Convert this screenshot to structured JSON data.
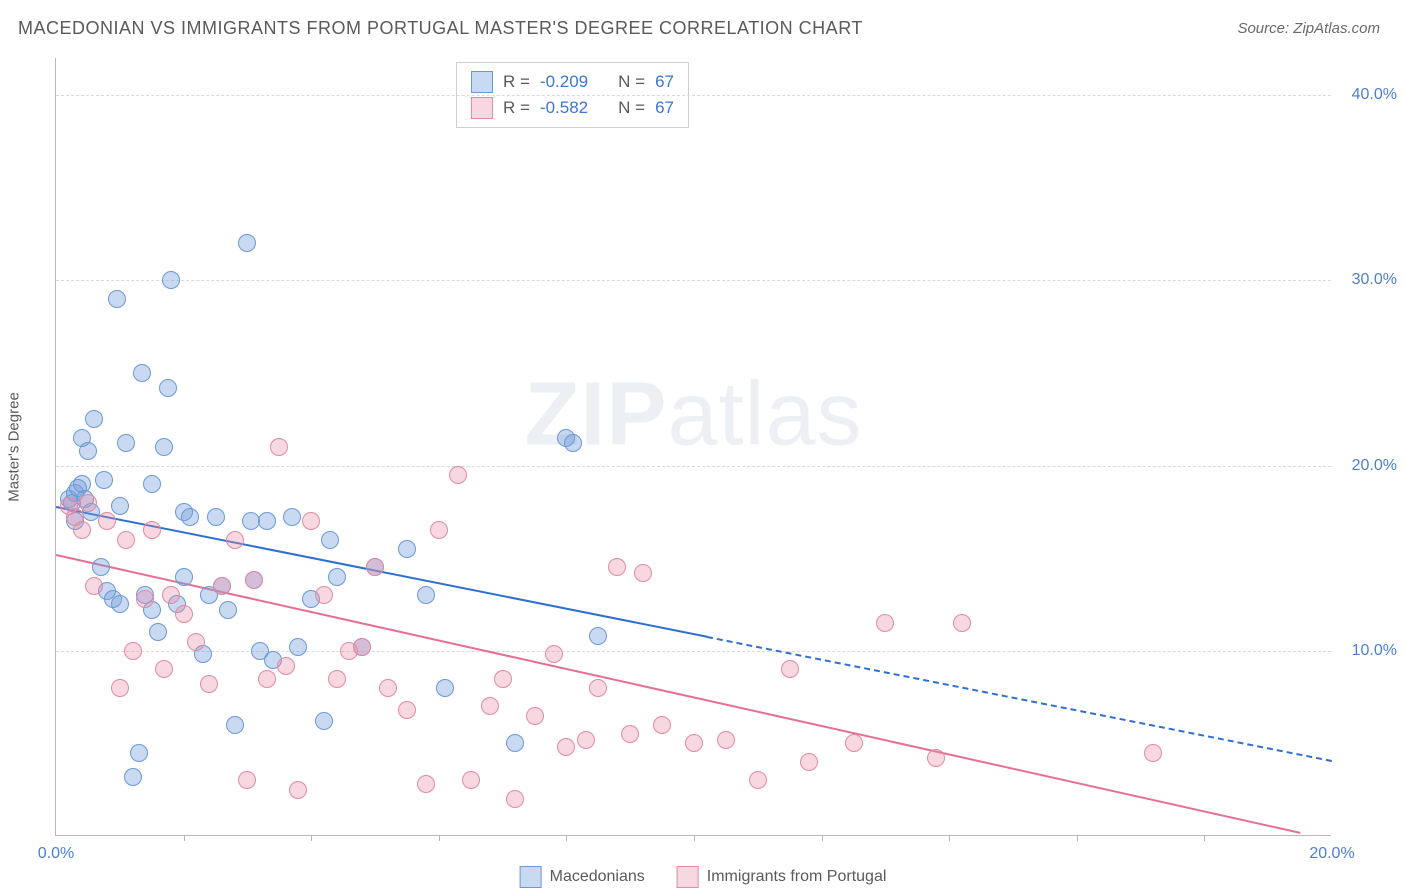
{
  "title": "MACEDONIAN VS IMMIGRANTS FROM PORTUGAL MASTER'S DEGREE CORRELATION CHART",
  "source_label": "Source: ZipAtlas.com",
  "watermark": {
    "bold": "ZIP",
    "rest": "atlas"
  },
  "chart": {
    "type": "scatter",
    "ylabel": "Master's Degree",
    "xlim": [
      0,
      20
    ],
    "ylim": [
      0,
      42
    ],
    "x_ticks": [
      0,
      20
    ],
    "x_tick_labels": [
      "0.0%",
      "20.0%"
    ],
    "x_minor_marks": [
      2,
      4,
      6,
      8,
      10,
      12,
      14,
      16,
      18
    ],
    "y_gridlines": [
      10,
      20,
      30,
      40
    ],
    "y_tick_labels": [
      "10.0%",
      "20.0%",
      "30.0%",
      "40.0%"
    ],
    "plot_bg": "#ffffff",
    "grid_color": "#d9d9d9",
    "axis_color": "#b8b8b8",
    "tick_label_color": "#4a7fd6",
    "marker_radius": 9,
    "marker_border": 1,
    "series": [
      {
        "id": "macedonians",
        "label": "Macedonians",
        "fill": "rgba(120,160,220,0.40)",
        "stroke": "#6a99d6",
        "reg_color": "#2f6fd0",
        "stats": {
          "R": "-0.209",
          "N": "67"
        },
        "regression": {
          "x1": 0,
          "y1": 17.8,
          "x2_solid": 10.2,
          "y2_solid": 10.8,
          "x2_dash": 20,
          "y2_dash": 4.1
        },
        "points": [
          [
            0.2,
            18.2
          ],
          [
            0.25,
            18.0
          ],
          [
            0.3,
            18.5
          ],
          [
            0.3,
            17.0
          ],
          [
            0.35,
            18.8
          ],
          [
            0.4,
            21.5
          ],
          [
            0.4,
            19.0
          ],
          [
            0.45,
            18.2
          ],
          [
            0.5,
            20.8
          ],
          [
            0.55,
            17.5
          ],
          [
            0.6,
            22.5
          ],
          [
            0.7,
            14.5
          ],
          [
            0.75,
            19.2
          ],
          [
            0.8,
            13.2
          ],
          [
            0.9,
            12.8
          ],
          [
            0.95,
            29.0
          ],
          [
            1.0,
            17.8
          ],
          [
            1.0,
            12.5
          ],
          [
            1.1,
            21.2
          ],
          [
            1.2,
            3.2
          ],
          [
            1.3,
            4.5
          ],
          [
            1.35,
            25.0
          ],
          [
            1.4,
            13.0
          ],
          [
            1.5,
            19.0
          ],
          [
            1.5,
            12.2
          ],
          [
            1.6,
            11.0
          ],
          [
            1.7,
            21.0
          ],
          [
            1.75,
            24.2
          ],
          [
            1.8,
            30.0
          ],
          [
            1.9,
            12.5
          ],
          [
            2.0,
            17.5
          ],
          [
            2.0,
            14.0
          ],
          [
            2.1,
            17.2
          ],
          [
            2.3,
            9.8
          ],
          [
            2.4,
            13.0
          ],
          [
            2.5,
            17.2
          ],
          [
            2.6,
            13.5
          ],
          [
            2.7,
            12.2
          ],
          [
            2.8,
            6.0
          ],
          [
            3.0,
            32.0
          ],
          [
            3.05,
            17.0
          ],
          [
            3.1,
            13.8
          ],
          [
            3.2,
            10.0
          ],
          [
            3.3,
            17.0
          ],
          [
            3.4,
            9.5
          ],
          [
            3.7,
            17.2
          ],
          [
            3.8,
            10.2
          ],
          [
            4.0,
            12.8
          ],
          [
            4.2,
            6.2
          ],
          [
            4.3,
            16.0
          ],
          [
            4.4,
            14.0
          ],
          [
            4.8,
            10.2
          ],
          [
            5.0,
            14.5
          ],
          [
            5.5,
            15.5
          ],
          [
            5.8,
            13.0
          ],
          [
            6.1,
            8.0
          ],
          [
            7.2,
            5.0
          ],
          [
            8.0,
            21.5
          ],
          [
            8.1,
            21.2
          ],
          [
            8.5,
            10.8
          ]
        ]
      },
      {
        "id": "portugal",
        "label": "Immigrants from Portugal",
        "fill": "rgba(232,140,165,0.35)",
        "stroke": "#e28aa3",
        "reg_color": "#e66f92",
        "stats": {
          "R": "-0.582",
          "N": "67"
        },
        "regression": {
          "x1": 0,
          "y1": 15.2,
          "x2_solid": 19.5,
          "y2_solid": 0.2,
          "x2_dash": 19.5,
          "y2_dash": 0.2
        },
        "points": [
          [
            0.2,
            17.8
          ],
          [
            0.3,
            17.2
          ],
          [
            0.4,
            16.5
          ],
          [
            0.5,
            18.0
          ],
          [
            0.6,
            13.5
          ],
          [
            0.8,
            17.0
          ],
          [
            1.0,
            8.0
          ],
          [
            1.1,
            16.0
          ],
          [
            1.2,
            10.0
          ],
          [
            1.4,
            12.8
          ],
          [
            1.5,
            16.5
          ],
          [
            1.7,
            9.0
          ],
          [
            1.8,
            13.0
          ],
          [
            2.0,
            12.0
          ],
          [
            2.2,
            10.5
          ],
          [
            2.4,
            8.2
          ],
          [
            2.6,
            13.5
          ],
          [
            2.8,
            16.0
          ],
          [
            3.0,
            3.0
          ],
          [
            3.1,
            13.8
          ],
          [
            3.3,
            8.5
          ],
          [
            3.5,
            21.0
          ],
          [
            3.6,
            9.2
          ],
          [
            3.8,
            2.5
          ],
          [
            4.0,
            17.0
          ],
          [
            4.2,
            13.0
          ],
          [
            4.4,
            8.5
          ],
          [
            4.6,
            10.0
          ],
          [
            4.8,
            10.2
          ],
          [
            5.0,
            14.5
          ],
          [
            5.2,
            8.0
          ],
          [
            5.5,
            6.8
          ],
          [
            5.8,
            2.8
          ],
          [
            6.0,
            16.5
          ],
          [
            6.3,
            19.5
          ],
          [
            6.5,
            3.0
          ],
          [
            6.8,
            7.0
          ],
          [
            7.0,
            8.5
          ],
          [
            7.2,
            2.0
          ],
          [
            7.5,
            6.5
          ],
          [
            7.8,
            9.8
          ],
          [
            8.0,
            4.8
          ],
          [
            8.3,
            5.2
          ],
          [
            8.5,
            8.0
          ],
          [
            8.8,
            14.5
          ],
          [
            9.0,
            5.5
          ],
          [
            9.2,
            14.2
          ],
          [
            9.5,
            6.0
          ],
          [
            10.0,
            5.0
          ],
          [
            10.5,
            5.2
          ],
          [
            11.0,
            3.0
          ],
          [
            11.5,
            9.0
          ],
          [
            11.8,
            4.0
          ],
          [
            12.5,
            5.0
          ],
          [
            13.0,
            11.5
          ],
          [
            13.8,
            4.2
          ],
          [
            14.2,
            11.5
          ],
          [
            17.2,
            4.5
          ]
        ]
      }
    ],
    "stats_box": {
      "rows": [
        {
          "swatch_fill": "rgba(120,160,220,0.40)",
          "swatch_stroke": "#6a99d6",
          "r": "-0.209",
          "n": "67"
        },
        {
          "swatch_fill": "rgba(232,140,165,0.35)",
          "swatch_stroke": "#e28aa3",
          "r": "-0.582",
          "n": "67"
        }
      ],
      "labels": {
        "R": "R =",
        "N": "N ="
      }
    },
    "bottom_legend": [
      {
        "swatch_fill": "rgba(120,160,220,0.40)",
        "swatch_stroke": "#6a99d6",
        "label": "Macedonians"
      },
      {
        "swatch_fill": "rgba(232,140,165,0.35)",
        "swatch_stroke": "#e28aa3",
        "label": "Immigrants from Portugal"
      }
    ]
  }
}
